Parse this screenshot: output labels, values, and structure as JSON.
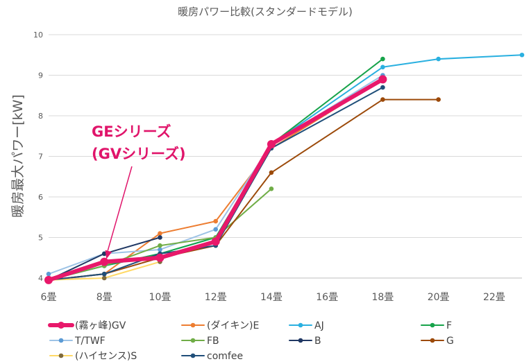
{
  "chart_data": {
    "type": "line",
    "title": "暖房パワー比較(スタンダードモデル)",
    "ylabel": "暖房最大パワー[kW]",
    "xlabel": "",
    "xlim": [
      6,
      23
    ],
    "ylim": [
      4,
      10
    ],
    "x_ticks": [
      6,
      8,
      10,
      12,
      14,
      16,
      18,
      20,
      22
    ],
    "x_tick_labels": [
      "6畳",
      "8畳",
      "10畳",
      "12畳",
      "14畳",
      "16畳",
      "18畳",
      "20畳",
      "22畳"
    ],
    "y_ticks": [
      4,
      5,
      6,
      7,
      8,
      9,
      10
    ],
    "y_tick_labels": [
      "4",
      "5",
      "6",
      "7",
      "8",
      "9",
      "10"
    ],
    "grid": "y-major",
    "legend_position": "bottom",
    "annotation": {
      "lines": [
        "GEシリーズ",
        "(GVシリーズ)"
      ],
      "color": "#e0146a"
    },
    "series": [
      {
        "name": "(霧ヶ峰)GV",
        "color": "#e8186a",
        "highlight": true,
        "points": [
          [
            6,
            3.95
          ],
          [
            8,
            4.4
          ],
          [
            10,
            4.5
          ],
          [
            12,
            4.9
          ],
          [
            14,
            7.3
          ],
          [
            18,
            8.9
          ]
        ]
      },
      {
        "name": "(ダイキン)E",
        "color": "#ed7d31",
        "points": [
          [
            6,
            3.95
          ],
          [
            8,
            4.1
          ],
          [
            10,
            5.1
          ],
          [
            12,
            5.4
          ],
          [
            14,
            7.2
          ],
          [
            18,
            8.9
          ]
        ]
      },
      {
        "name": "AJ",
        "color": "#2ab0e0",
        "points": [
          [
            6,
            3.95
          ],
          [
            8,
            4.3
          ],
          [
            10,
            4.6
          ],
          [
            12,
            5.0
          ],
          [
            14,
            7.3
          ],
          [
            18,
            9.2
          ],
          [
            20,
            9.4
          ],
          [
            23,
            9.5
          ]
        ]
      },
      {
        "name": "F",
        "color": "#17a34a",
        "points": [
          [
            6,
            3.95
          ],
          [
            8,
            4.3
          ],
          [
            10,
            4.6
          ],
          [
            12,
            5.0
          ],
          [
            14,
            7.3
          ],
          [
            18,
            9.4
          ]
        ]
      },
      {
        "name": "T/TWF",
        "color": "#9dc3e6",
        "marker_color": "#5b9bd5",
        "points": [
          [
            6,
            4.1
          ],
          [
            8,
            4.6
          ],
          [
            10,
            4.7
          ],
          [
            12,
            5.2
          ],
          [
            14,
            7.3
          ],
          [
            18,
            9.0
          ]
        ]
      },
      {
        "name": "FB",
        "color": "#70ad47",
        "points": [
          [
            6,
            3.95
          ],
          [
            8,
            4.3
          ],
          [
            10,
            4.8
          ],
          [
            12,
            5.0
          ],
          [
            14,
            6.2
          ]
        ]
      },
      {
        "name": "B",
        "color": "#203864",
        "points": [
          [
            6,
            3.95
          ],
          [
            8,
            4.6
          ],
          [
            10,
            5.0
          ]
        ]
      },
      {
        "name": "G",
        "color": "#9c4a0a",
        "points": [
          [
            6,
            3.95
          ],
          [
            8,
            4.1
          ],
          [
            10,
            4.5
          ],
          [
            12,
            4.8
          ],
          [
            14,
            6.6
          ],
          [
            18,
            8.4
          ],
          [
            20,
            8.4
          ]
        ]
      },
      {
        "name": "(ハイセンス)S",
        "color": "#ffd966",
        "marker_color": "#7f6a3c",
        "points": [
          [
            6,
            3.95
          ],
          [
            8,
            4.0
          ],
          [
            10,
            4.4
          ]
        ]
      },
      {
        "name": "comfee",
        "color": "#1f4e79",
        "points": [
          [
            6,
            3.95
          ],
          [
            8,
            4.1
          ],
          [
            10,
            4.6
          ],
          [
            12,
            4.8
          ],
          [
            14,
            7.2
          ],
          [
            18,
            8.7
          ]
        ]
      }
    ]
  }
}
